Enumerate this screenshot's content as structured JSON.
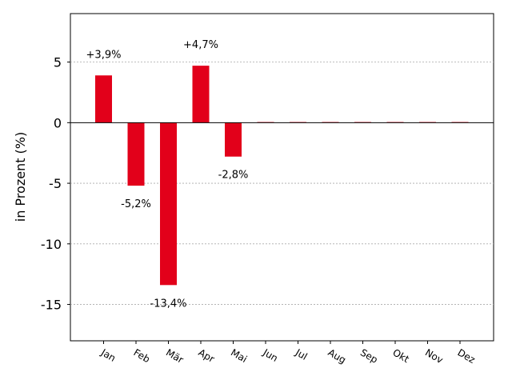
{
  "chart_data": {
    "type": "bar",
    "categories": [
      "Jan",
      "Feb",
      "Mär",
      "Apr",
      "Mai",
      "Jun",
      "Jul",
      "Aug",
      "Sep",
      "Okt",
      "Nov",
      "Dez"
    ],
    "values": [
      3.9,
      -5.2,
      -13.4,
      4.7,
      -2.8,
      0,
      0,
      0,
      0,
      0,
      0,
      0
    ],
    "data_labels": [
      "+3,9%",
      "-5,2%",
      "-13,4%",
      "+4,7%",
      "-2,8%",
      "",
      "",
      "",
      "",
      "",
      "",
      ""
    ],
    "title": "",
    "xlabel": "",
    "ylabel": "in Prozent (%)",
    "ylim": [
      -18,
      9
    ],
    "yticks": [
      5,
      0,
      -5,
      -10,
      -15
    ],
    "ytick_labels": [
      "5",
      "0",
      "-5",
      "-10",
      "-15"
    ],
    "grid": "horizontal dotted",
    "bar_color": "#e2001a",
    "legend": "none"
  }
}
